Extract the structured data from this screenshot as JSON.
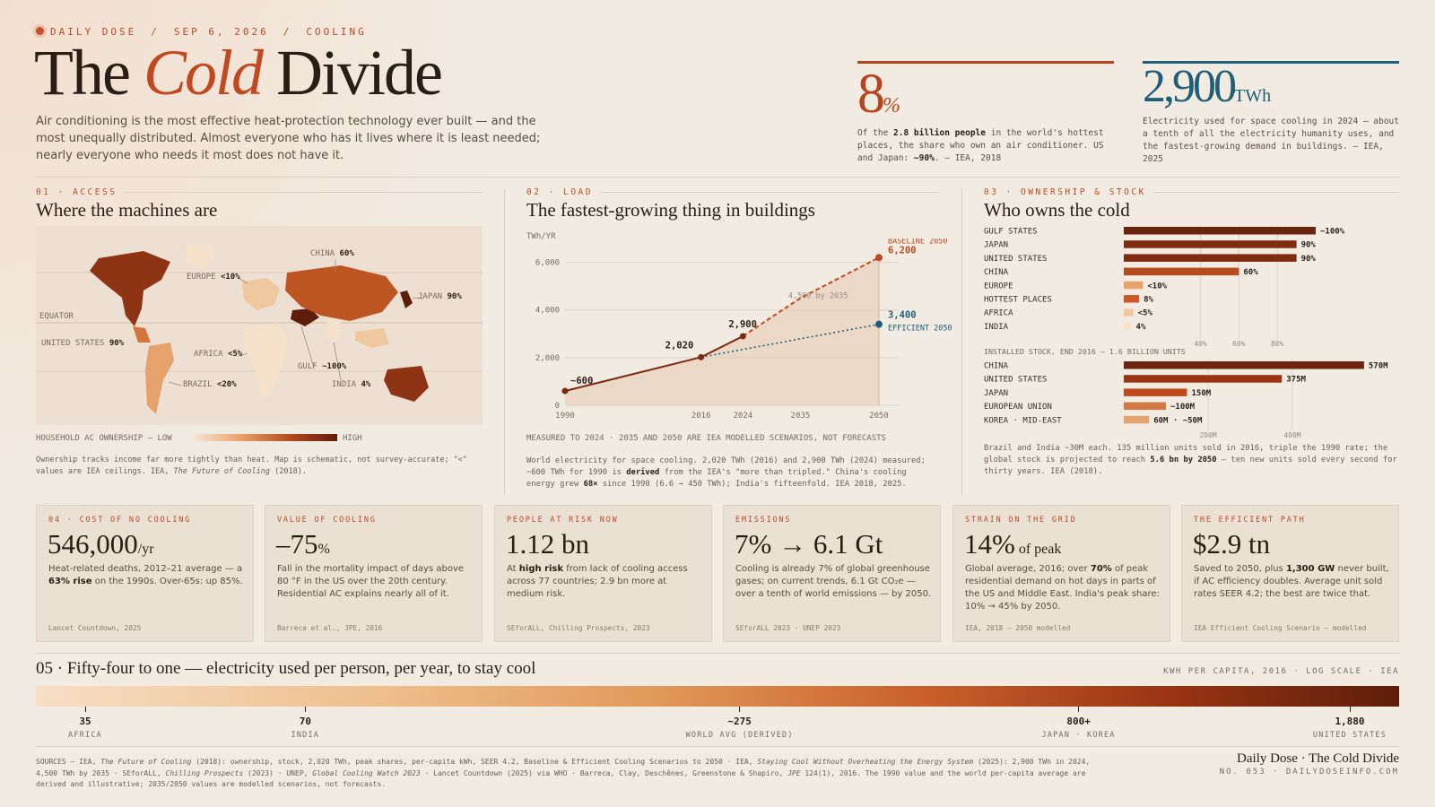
{
  "header": {
    "kicker": [
      "DAILY DOSE",
      "SEP 6, 2026",
      "COOLING"
    ],
    "kicker_sep": "/",
    "title_pre": "The ",
    "title_em": "Cold",
    "title_post": " Divide",
    "lede": "Air conditioning is the most effective heat-protection technology ever built — and the most unequally distributed. Almost everyone who has it lives where it is least needed; nearly everyone who needs it most does not have it."
  },
  "top_stats": [
    {
      "value": "8",
      "unit": "%",
      "text_parts": [
        "Of the ",
        "2.8 billion people",
        " in the world's hottest places, the share who own an air conditioner. US and Japan: ",
        "~90%",
        ". — IEA, 2018"
      ],
      "color": "#b7441e"
    },
    {
      "value": "2,900",
      "unit": "TWh",
      "text": "Electricity used for space cooling in 2024 — about a tenth of all the electricity humanity uses, and the fastest-growing demand in buildings. — IEA, 2025",
      "color": "#1f5f7a"
    }
  ],
  "sections": {
    "access": {
      "label": "01 · ACCESS",
      "title": "Where the machines are",
      "map_labels": {
        "equator": "EQUATOR",
        "us": {
          "name": "UNITED STATES",
          "value": "90%"
        },
        "europe": {
          "name": "EUROPE",
          "value": "<10%"
        },
        "china": {
          "name": "CHINA",
          "value": "60%"
        },
        "japan": {
          "name": "JAPAN",
          "value": "90%"
        },
        "africa": {
          "name": "AFRICA",
          "value": "<5%"
        },
        "gulf": {
          "name": "GULF",
          "value": "~100%"
        },
        "india": {
          "name": "INDIA",
          "value": "4%"
        },
        "brazil": {
          "name": "BRAZIL",
          "value": "<20%"
        }
      },
      "legend_left": "HOUSEHOLD AC OWNERSHIP — LOW",
      "legend_right": "HIGH",
      "note_pre": "Ownership tracks income far more tightly than heat. Map is schematic, not survey-accurate; \"<\" values are IEA ceilings. IEA, ",
      "note_em": "The Future of Cooling",
      "note_post": " (2018)."
    },
    "load": {
      "label": "02 · LOAD",
      "title": "The fastest-growing thing in buildings",
      "unit": "TWh/YR",
      "caption": "MEASURED TO 2024 · 2035 AND 2050 ARE IEA MODELLED SCENARIOS, NOT FORECASTS",
      "note_parts": [
        "World electricity for space cooling. 2,020 TWh (2016) and 2,900 TWh (2024) measured; ~600 TWh for 1990 is ",
        "derived",
        " from the IEA's \"more than tripled.\" China's cooling energy grew ",
        "68×",
        " since 1990 (6.6 → 450 TWh); India's fifteenfold. IEA 2018, 2025."
      ]
    },
    "ownership": {
      "label": "03 · OWNERSHIP & STOCK",
      "title": "Who owns the cold",
      "stock_caption": "INSTALLED STOCK, END 2016 — 1.6 BILLION UNITS",
      "note_parts": [
        "Brazil and India ~30M each. 135 million units sold in 2016, triple the 1990 rate; the global stock is projected to reach ",
        "5.6 bn by 2050",
        " — ten new units sold every second for thirty years. IEA (2018)."
      ]
    }
  },
  "chart_data": [
    {
      "type": "line",
      "title": "The fastest-growing thing in buildings",
      "ylabel": "TWh/YR",
      "x_ticks": [
        "1990",
        "2016",
        "2024",
        "2035",
        "2050"
      ],
      "y_ticks": [
        "0",
        "2,000",
        "4,000",
        "6,000"
      ],
      "ylim": [
        0,
        7000
      ],
      "series": [
        {
          "name": "measured",
          "x": [
            1990,
            2016,
            2024
          ],
          "y": [
            600,
            2020,
            2900
          ],
          "labels": [
            "~600",
            "2,020",
            "2,900"
          ],
          "color": "#7a2a12",
          "style": "solid"
        },
        {
          "name": "BASELINE 2050",
          "x": [
            2024,
            2035,
            2050
          ],
          "y": [
            2900,
            4500,
            6200
          ],
          "end_label": "6,200",
          "color": "#c0491f",
          "style": "dashed"
        },
        {
          "name": "EFFICIENT 2050",
          "x": [
            2016,
            2050
          ],
          "y": [
            2020,
            3400
          ],
          "end_label": "3,400",
          "color": "#1f5f7a",
          "style": "dotted"
        }
      ],
      "annotation": "4,500 by 2035",
      "grid": true
    },
    {
      "type": "bar",
      "title": "Who owns the cold",
      "orientation": "horizontal",
      "categories": [
        "GULF STATES",
        "JAPAN",
        "UNITED STATES",
        "CHINA",
        "EUROPE",
        "HOTTEST PLACES",
        "AFRICA",
        "INDIA"
      ],
      "values": [
        100,
        90,
        90,
        60,
        10,
        8,
        5,
        4
      ],
      "labels": [
        "~100%",
        "90%",
        "90%",
        "60%",
        "<10%",
        "8%",
        "<5%",
        "4%"
      ],
      "colors": [
        "#6b2410",
        "#7e2c12",
        "#7e2c12",
        "#b84a1f",
        "#e8a36c",
        "#d0572a",
        "#f0c9a0",
        "#f7e2c8"
      ],
      "x_ticks": [
        "40%",
        "60%",
        "80%"
      ],
      "xlim": [
        0,
        100
      ]
    },
    {
      "type": "bar",
      "title": "INSTALLED STOCK, END 2016 — 1.6 BILLION UNITS",
      "orientation": "horizontal",
      "categories": [
        "CHINA",
        "UNITED STATES",
        "JAPAN",
        "EUROPEAN UNION",
        "KOREA · MID-EAST"
      ],
      "values": [
        570,
        375,
        150,
        100,
        60
      ],
      "labels": [
        "570M",
        "375M",
        "150M",
        "~100M",
        "60M · ~50M"
      ],
      "colors": [
        "#6b2410",
        "#9a3413",
        "#c0491f",
        "#d27a45",
        "#e3a470"
      ],
      "x_ticks": [
        "200M",
        "400M"
      ],
      "xlim": [
        0,
        600
      ]
    }
  ],
  "cards": [
    {
      "label": "04 · COST OF NO COOLING",
      "value": "546,000",
      "unit": "/yr",
      "desc_parts": [
        "Heat-related deaths, 2012–21 average — a ",
        "63% rise",
        " on the 1990s. Over-65s: up 85%."
      ],
      "source": "Lancet Countdown, 2025"
    },
    {
      "label": "VALUE OF COOLING",
      "value": "–75",
      "unit": "%",
      "desc_parts": [
        "Fall in the mortality impact of days above 80 °F in the US over the 20th century. Residential AC explains nearly all of it."
      ],
      "source": "Barreca et al., JPE, 2016"
    },
    {
      "label": "PEOPLE AT RISK NOW",
      "value": "1.12 bn",
      "unit": "",
      "desc_parts": [
        "At ",
        "high risk",
        " from lack of cooling access across 77 countries; 2.9 bn more at medium risk."
      ],
      "source": "SEforALL, Chilling Prospects, 2023"
    },
    {
      "label": "EMISSIONS",
      "value": "7% → 6.1 Gt",
      "unit": "",
      "desc_parts": [
        "Cooling is already 7% of global greenhouse gases; on current trends, 6.1 Gt CO₂e — over a tenth of world emissions — by 2050."
      ],
      "source": "SEforALL 2023 · UNEP 2023"
    },
    {
      "label": "STRAIN ON THE GRID",
      "value": "14%",
      "unit": " of peak",
      "desc_parts": [
        "Global average, 2016; over ",
        "70%",
        " of peak residential demand on hot days in parts of the US and Middle East. India's peak share: 10% → 45% by 2050."
      ],
      "source": "IEA, 2018 — 2050 modelled"
    },
    {
      "label": "THE EFFICIENT PATH",
      "value": "$2.9 tn",
      "unit": "",
      "desc_parts": [
        "Saved to 2050, plus ",
        "1,300 GW",
        " never built, if AC efficiency doubles. Average unit sold rates SEER 4.2; the best are twice that."
      ],
      "source": "IEA Efficient Cooling Scenario — modelled"
    }
  ],
  "per_capita": {
    "title": "05 · Fifty-four to one — electricity used per person, per year, to stay cool",
    "meta": "KWH PER CAPITA, 2016 · LOG SCALE · IEA",
    "ticks": [
      {
        "value": "35",
        "label": "AFRICA"
      },
      {
        "value": "70",
        "label": "INDIA"
      },
      {
        "value": "~275",
        "label": "WORLD AVG (DERIVED)"
      },
      {
        "value": "800+",
        "label": "JAPAN · KOREA"
      },
      {
        "value": "1,880",
        "label": "UNITED STATES"
      }
    ],
    "numeric": [
      35,
      70,
      275,
      800,
      1880
    ]
  },
  "footer": {
    "sources_parts": [
      "SOURCES — IEA, ",
      "The Future of Cooling",
      " (2018): ownership, stock, 2,020 TWh, peak shares, per-capita kWh, SEER 4.2, Baseline & Efficient Cooling Scenarios to 2050 · IEA, ",
      "Staying Cool Without Overheating the Energy System",
      " (2025): 2,900 TWh in 2024, 4,500 TWh by 2035 · SEforALL, ",
      "Chilling Prospects",
      " (2023) · UNEP, ",
      "Global Cooling Watch 2023",
      " · Lancet Countdown (2025) via WHO · Barreca, Clay, Deschênes, Greenstone & Shapiro, ",
      "JPE",
      " 124(1), 2016. The 1990 value and the world per-capita average are derived and illustrative; 2035/2050 values are modelled scenarios, not forecasts."
    ],
    "brand": "Daily Dose · The Cold Divide",
    "issue": "NO. 053 · DAILYDOSEINFO.COM"
  }
}
